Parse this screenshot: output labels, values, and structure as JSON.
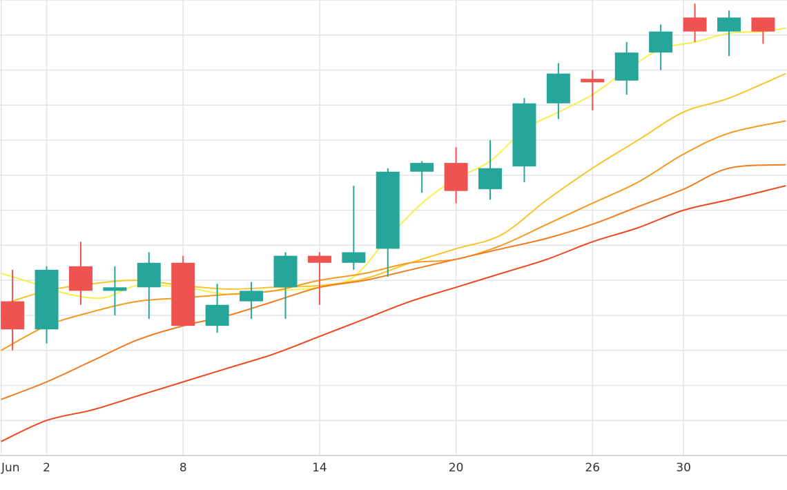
{
  "chart_data": {
    "type": "candlestick",
    "x_ticks": [
      {
        "x": 0,
        "label": "Jun"
      },
      {
        "x": 2,
        "label": "2"
      },
      {
        "x": 8,
        "label": "8"
      },
      {
        "x": 14,
        "label": "14"
      },
      {
        "x": 20,
        "label": "20"
      },
      {
        "x": 26,
        "label": "26"
      },
      {
        "x": 30,
        "label": "30"
      }
    ],
    "xlim": [
      -0.05,
      34.55
    ],
    "ylim": [
      -1,
      12
    ],
    "grid": true,
    "candles": [
      {
        "x": 0.5,
        "open": 3.4,
        "high": 4.3,
        "low": 2.0,
        "close": 2.6
      },
      {
        "x": 2,
        "open": 2.6,
        "high": 4.4,
        "low": 2.2,
        "close": 4.3
      },
      {
        "x": 3.5,
        "open": 4.4,
        "high": 5.1,
        "low": 3.3,
        "close": 3.7
      },
      {
        "x": 5,
        "open": 3.7,
        "high": 4.4,
        "low": 3.0,
        "close": 3.8
      },
      {
        "x": 6.5,
        "open": 3.8,
        "high": 4.8,
        "low": 2.9,
        "close": 4.5
      },
      {
        "x": 8,
        "open": 4.5,
        "high": 4.7,
        "low": 2.7,
        "close": 2.7
      },
      {
        "x": 9.5,
        "open": 2.7,
        "high": 3.9,
        "low": 2.5,
        "close": 3.3
      },
      {
        "x": 11,
        "open": 3.4,
        "high": 3.95,
        "low": 2.9,
        "close": 3.7
      },
      {
        "x": 12.5,
        "open": 3.8,
        "high": 4.8,
        "low": 2.9,
        "close": 4.7
      },
      {
        "x": 14,
        "open": 4.7,
        "high": 4.8,
        "low": 3.3,
        "close": 4.5
      },
      {
        "x": 15.5,
        "open": 4.5,
        "high": 6.7,
        "low": 4.3,
        "close": 4.8
      },
      {
        "x": 17,
        "open": 4.9,
        "high": 7.2,
        "low": 4.1,
        "close": 7.1
      },
      {
        "x": 18.5,
        "open": 7.1,
        "high": 7.4,
        "low": 6.5,
        "close": 7.35
      },
      {
        "x": 20,
        "open": 7.35,
        "high": 7.8,
        "low": 6.2,
        "close": 6.55
      },
      {
        "x": 21.5,
        "open": 6.6,
        "high": 8.0,
        "low": 6.3,
        "close": 7.2
      },
      {
        "x": 23,
        "open": 7.25,
        "high": 9.2,
        "low": 6.8,
        "close": 9.05
      },
      {
        "x": 24.5,
        "open": 9.05,
        "high": 10.2,
        "low": 8.6,
        "close": 9.9
      },
      {
        "x": 26,
        "open": 9.75,
        "high": 10.0,
        "low": 8.85,
        "close": 9.65
      },
      {
        "x": 27.5,
        "open": 9.7,
        "high": 10.8,
        "low": 9.3,
        "close": 10.5
      },
      {
        "x": 29,
        "open": 10.5,
        "high": 11.3,
        "low": 10.0,
        "close": 11.1
      },
      {
        "x": 30.5,
        "open": 11.5,
        "high": 11.9,
        "low": 10.8,
        "close": 11.1
      },
      {
        "x": 32,
        "open": 11.1,
        "high": 11.7,
        "low": 10.4,
        "close": 11.5
      },
      {
        "x": 33.5,
        "open": 11.5,
        "high": 11.4,
        "low": 10.75,
        "close": 11.1
      }
    ],
    "moving_averages": [
      {
        "color": "#f7ef4b",
        "x": [
          0,
          1.5,
          3,
          4.5,
          6,
          8,
          10,
          12,
          14,
          15.5,
          17,
          18.5,
          20,
          21.5,
          23,
          24.5,
          26,
          27.5,
          29,
          30.5,
          32,
          33.5,
          34.5
        ],
        "y": [
          4.2,
          3.9,
          3.6,
          3.5,
          3.85,
          3.8,
          3.6,
          3.7,
          3.8,
          4.1,
          5.2,
          6.2,
          6.9,
          7.4,
          8.3,
          8.8,
          9.3,
          10.0,
          10.6,
          10.8,
          11.05,
          11.1,
          11.2
        ]
      },
      {
        "color": "#f7c52a",
        "x": [
          0,
          2,
          4,
          6,
          8,
          10,
          12,
          14,
          16,
          18,
          20,
          22,
          24,
          26,
          28,
          30,
          32,
          34.5
        ],
        "y": [
          3.3,
          3.7,
          3.9,
          4.0,
          3.85,
          3.75,
          3.8,
          3.85,
          4.05,
          4.5,
          4.9,
          5.3,
          6.3,
          7.2,
          8.0,
          8.8,
          9.2,
          9.9
        ]
      },
      {
        "color": "#f59a1f",
        "x": [
          0,
          2,
          4,
          6,
          8,
          10,
          12,
          14,
          16,
          18,
          20,
          22,
          24,
          26,
          28,
          30,
          32,
          34.5
        ],
        "y": [
          2.0,
          2.7,
          3.1,
          3.4,
          3.5,
          3.6,
          3.7,
          4.0,
          4.2,
          4.5,
          4.6,
          5.0,
          5.6,
          6.2,
          6.8,
          7.6,
          8.2,
          8.55
        ]
      },
      {
        "color": "#f27a1e",
        "x": [
          0,
          2,
          4,
          6,
          8,
          10,
          12,
          14,
          16,
          18,
          20,
          22,
          24,
          26,
          28,
          30,
          32,
          34.5
        ],
        "y": [
          0.6,
          1.1,
          1.7,
          2.3,
          2.7,
          3.0,
          3.4,
          3.8,
          4.0,
          4.3,
          4.6,
          4.9,
          5.2,
          5.6,
          6.1,
          6.6,
          7.2,
          7.3
        ]
      },
      {
        "color": "#f0461f",
        "x": [
          0,
          2,
          4,
          6,
          8,
          10,
          12,
          14,
          16,
          18,
          20,
          22,
          24,
          26,
          28,
          30,
          32,
          34.5
        ],
        "y": [
          -0.6,
          0.0,
          0.3,
          0.7,
          1.1,
          1.5,
          1.9,
          2.4,
          2.9,
          3.4,
          3.8,
          4.2,
          4.6,
          5.1,
          5.5,
          6.0,
          6.3,
          6.7
        ]
      }
    ],
    "colors": {
      "up": "#26a69a",
      "down": "#ef5350",
      "grid": "#e4e4e4",
      "axis": "#d0d0d0"
    }
  }
}
